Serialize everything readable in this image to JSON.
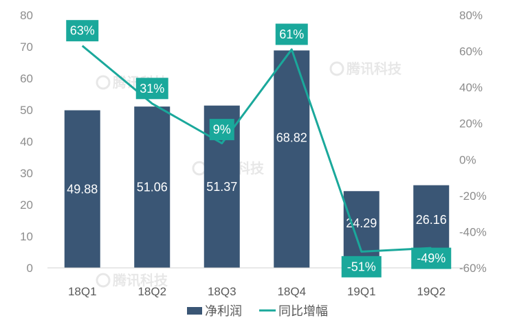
{
  "chart_data": {
    "type": "bar",
    "categories": [
      "18Q1",
      "18Q2",
      "18Q3",
      "18Q4",
      "19Q1",
      "19Q2"
    ],
    "series": [
      {
        "name": "净利润",
        "kind": "bar",
        "axis": "left",
        "values": [
          49.88,
          51.06,
          51.37,
          68.82,
          24.29,
          26.16
        ],
        "labels": [
          "49.88",
          "51.06",
          "51.37",
          "68.82",
          "24.29",
          "26.16"
        ],
        "color": "#3a5675"
      },
      {
        "name": "同比增幅",
        "kind": "line",
        "axis": "right",
        "values": [
          63,
          31,
          9,
          61,
          -51,
          -49
        ],
        "labels": [
          "63%",
          "31%",
          "9%",
          "61%",
          "-51%",
          "-49%"
        ],
        "color": "#1aa89b"
      }
    ],
    "y_left": {
      "min": 0,
      "max": 80,
      "ticks": [
        0,
        10,
        20,
        30,
        40,
        50,
        60,
        70,
        80
      ],
      "tick_labels": [
        "0",
        "10",
        "20",
        "30",
        "40",
        "50",
        "60",
        "70",
        "80"
      ]
    },
    "y_right": {
      "min": -60,
      "max": 80,
      "ticks": [
        80,
        60,
        40,
        20,
        0,
        -20,
        -40,
        -60
      ],
      "tick_labels": [
        "80%",
        "60%",
        "40%",
        "20%",
        "0%",
        "-20%",
        "-40%",
        "-60%"
      ]
    },
    "grid": false,
    "legend_position": "bottom",
    "watermark": "腾讯科技"
  }
}
